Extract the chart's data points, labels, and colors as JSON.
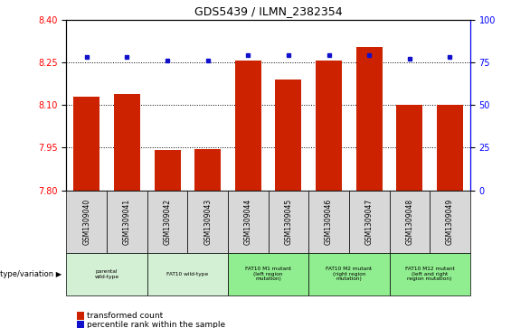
{
  "title": "GDS5439 / ILMN_2382354",
  "samples": [
    "GSM1309040",
    "GSM1309041",
    "GSM1309042",
    "GSM1309043",
    "GSM1309044",
    "GSM1309045",
    "GSM1309046",
    "GSM1309047",
    "GSM1309048",
    "GSM1309049"
  ],
  "red_values": [
    8.13,
    8.14,
    7.94,
    7.945,
    8.255,
    8.19,
    8.255,
    8.305,
    8.1,
    8.1
  ],
  "blue_values": [
    78,
    78,
    76,
    76,
    79,
    79,
    79,
    79,
    77,
    78
  ],
  "ylim_left": [
    7.8,
    8.4
  ],
  "ylim_right": [
    0,
    100
  ],
  "yticks_left": [
    7.8,
    7.95,
    8.1,
    8.25,
    8.4
  ],
  "yticks_right": [
    0,
    25,
    50,
    75,
    100
  ],
  "hlines": [
    7.95,
    8.1,
    8.25
  ],
  "groups": [
    {
      "label": "parental\nwild-type",
      "span": [
        0,
        2
      ],
      "light": true
    },
    {
      "label": "FAT10 wild-type",
      "span": [
        2,
        4
      ],
      "light": true
    },
    {
      "label": "FAT10 M1 mutant\n(left region\nmutation)",
      "span": [
        4,
        6
      ],
      "light": false
    },
    {
      "label": "FAT10 M2 mutant\n(right region\nmutation)",
      "span": [
        6,
        8
      ],
      "light": false
    },
    {
      "label": "FAT10 M12 mutant\n(left and right\nregion mutation)",
      "span": [
        8,
        10
      ],
      "light": false
    }
  ],
  "legend_label_red": "transformed count",
  "legend_label_blue": "percentile rank within the sample",
  "genotype_label": "genotype/variation",
  "bar_color": "#cc2200",
  "dot_color": "#1111cc",
  "sample_cell_color": "#d8d8d8",
  "group_color_light": "#d4f0d4",
  "group_color_dark": "#90ee90",
  "bar_width": 0.65
}
